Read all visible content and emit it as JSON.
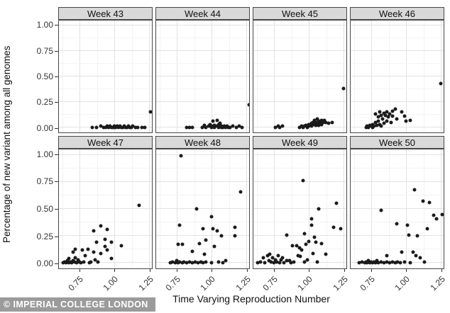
{
  "figure": {
    "watermark": "© IMPERIAL COLLEGE LONDON"
  },
  "chart_data": {
    "type": "scatter",
    "title": "",
    "xlabel": "Time Varying Reproduction Number",
    "ylabel": "Percentage of new variant among all genomes",
    "facet_by": "week",
    "legend": "none",
    "grid": "major+minor",
    "point_color": "#1b1b1b",
    "xlim": [
      0.6,
      1.27
    ],
    "ylim": [
      0.0,
      1.0
    ],
    "x_tick_values": [
      0.75,
      1.0,
      1.25
    ],
    "x_tick_labels": [
      "0.75",
      "1.00",
      "1.25"
    ],
    "y_tick_values": [
      0.0,
      0.25,
      0.5,
      0.75,
      1.0
    ],
    "y_tick_labels": [
      "0.00",
      "0.25",
      "0.50",
      "0.75",
      "1.00"
    ],
    "x_minor_ticks": [
      0.625,
      0.875,
      1.125
    ],
    "y_minor_ticks": [
      0.125,
      0.375,
      0.625,
      0.875
    ],
    "panels": [
      {
        "title": "Week 43",
        "points": [
          [
            0.84,
            0.0
          ],
          [
            0.87,
            0.0
          ],
          [
            0.9,
            0.01
          ],
          [
            0.92,
            0.0
          ],
          [
            0.94,
            0.0
          ],
          [
            0.95,
            0.01
          ],
          [
            0.96,
            0.0
          ],
          [
            0.97,
            0.01
          ],
          [
            0.98,
            0.0
          ],
          [
            0.99,
            0.0
          ],
          [
            1.0,
            0.01
          ],
          [
            1.0,
            0.0
          ],
          [
            1.01,
            0.0
          ],
          [
            1.02,
            0.01
          ],
          [
            1.03,
            0.0
          ],
          [
            1.04,
            0.01
          ],
          [
            1.05,
            0.0
          ],
          [
            1.06,
            0.0
          ],
          [
            1.07,
            0.01
          ],
          [
            1.08,
            0.0
          ],
          [
            1.09,
            0.0
          ],
          [
            1.1,
            0.01
          ],
          [
            1.11,
            0.0
          ],
          [
            1.12,
            0.0
          ],
          [
            1.13,
            0.01
          ],
          [
            1.15,
            0.0
          ],
          [
            1.17,
            0.0
          ],
          [
            1.2,
            0.0
          ],
          [
            1.22,
            0.0
          ],
          [
            1.26,
            0.15
          ]
        ]
      },
      {
        "title": "Week 44",
        "points": [
          [
            0.82,
            0.0
          ],
          [
            0.84,
            0.0
          ],
          [
            0.86,
            0.0
          ],
          [
            0.93,
            0.0
          ],
          [
            0.95,
            0.02
          ],
          [
            0.96,
            0.0
          ],
          [
            0.98,
            0.01
          ],
          [
            0.99,
            0.03
          ],
          [
            1.0,
            0.0
          ],
          [
            1.0,
            0.01
          ],
          [
            1.01,
            0.06
          ],
          [
            1.02,
            0.0
          ],
          [
            1.02,
            0.02
          ],
          [
            1.03,
            0.01
          ],
          [
            1.04,
            0.07
          ],
          [
            1.05,
            0.0
          ],
          [
            1.05,
            0.03
          ],
          [
            1.06,
            0.04
          ],
          [
            1.07,
            0.0
          ],
          [
            1.07,
            0.01
          ],
          [
            1.08,
            0.0
          ],
          [
            1.09,
            0.01
          ],
          [
            1.1,
            0.0
          ],
          [
            1.11,
            0.01
          ],
          [
            1.12,
            0.0
          ],
          [
            1.13,
            0.0
          ],
          [
            1.15,
            0.01
          ],
          [
            1.18,
            0.0
          ],
          [
            1.2,
            0.01
          ],
          [
            1.22,
            0.0
          ],
          [
            1.27,
            0.22
          ]
        ]
      },
      {
        "title": "Week 45",
        "points": [
          [
            0.76,
            0.0
          ],
          [
            0.78,
            0.01
          ],
          [
            0.79,
            0.0
          ],
          [
            0.81,
            0.01
          ],
          [
            0.93,
            0.0
          ],
          [
            0.95,
            0.01
          ],
          [
            0.96,
            0.0
          ],
          [
            0.97,
            0.01
          ],
          [
            0.98,
            0.02
          ],
          [
            0.99,
            0.0
          ],
          [
            1.0,
            0.01
          ],
          [
            1.0,
            0.03
          ],
          [
            1.01,
            0.02
          ],
          [
            1.02,
            0.04
          ],
          [
            1.02,
            0.01
          ],
          [
            1.03,
            0.05
          ],
          [
            1.04,
            0.03
          ],
          [
            1.04,
            0.07
          ],
          [
            1.05,
            0.02
          ],
          [
            1.05,
            0.05
          ],
          [
            1.06,
            0.08
          ],
          [
            1.06,
            0.04
          ],
          [
            1.07,
            0.06
          ],
          [
            1.07,
            0.02
          ],
          [
            1.08,
            0.05
          ],
          [
            1.09,
            0.03
          ],
          [
            1.09,
            0.07
          ],
          [
            1.1,
            0.05
          ],
          [
            1.11,
            0.07
          ],
          [
            1.12,
            0.05
          ],
          [
            1.14,
            0.04
          ],
          [
            1.17,
            0.05
          ],
          [
            1.25,
            0.38
          ]
        ]
      },
      {
        "title": "Week 46",
        "points": [
          [
            0.71,
            0.0
          ],
          [
            0.72,
            0.01
          ],
          [
            0.73,
            0.0
          ],
          [
            0.74,
            0.02
          ],
          [
            0.75,
            0.01
          ],
          [
            0.76,
            0.0
          ],
          [
            0.76,
            0.03
          ],
          [
            0.77,
            0.01
          ],
          [
            0.78,
            0.13
          ],
          [
            0.78,
            0.05
          ],
          [
            0.79,
            0.02
          ],
          [
            0.8,
            0.1
          ],
          [
            0.8,
            0.06
          ],
          [
            0.81,
            0.15
          ],
          [
            0.81,
            0.03
          ],
          [
            0.82,
            0.12
          ],
          [
            0.82,
            0.01
          ],
          [
            0.83,
            0.08
          ],
          [
            0.84,
            0.14
          ],
          [
            0.84,
            0.04
          ],
          [
            0.85,
            0.12
          ],
          [
            0.86,
            0.15
          ],
          [
            0.86,
            0.06
          ],
          [
            0.87,
            0.1
          ],
          [
            0.88,
            0.13
          ],
          [
            0.89,
            0.05
          ],
          [
            0.9,
            0.16
          ],
          [
            0.9,
            0.11
          ],
          [
            0.92,
            0.18
          ],
          [
            0.93,
            0.08
          ],
          [
            0.97,
            0.15
          ],
          [
            0.99,
            0.11
          ],
          [
            1.0,
            0.06
          ],
          [
            1.03,
            0.07
          ],
          [
            1.25,
            0.43
          ]
        ]
      },
      {
        "title": "Week 47",
        "points": [
          [
            0.63,
            0.0
          ],
          [
            0.64,
            0.01
          ],
          [
            0.65,
            0.0
          ],
          [
            0.66,
            0.02
          ],
          [
            0.67,
            0.0
          ],
          [
            0.67,
            0.04
          ],
          [
            0.68,
            0.01
          ],
          [
            0.69,
            0.0
          ],
          [
            0.7,
            0.1
          ],
          [
            0.7,
            0.02
          ],
          [
            0.71,
            0.01
          ],
          [
            0.72,
            0.13
          ],
          [
            0.72,
            0.05
          ],
          [
            0.73,
            0.0
          ],
          [
            0.74,
            0.03
          ],
          [
            0.75,
            0.01
          ],
          [
            0.76,
            0.0
          ],
          [
            0.77,
            0.12
          ],
          [
            0.78,
            0.01
          ],
          [
            0.79,
            0.07
          ],
          [
            0.81,
            0.13
          ],
          [
            0.82,
            0.0
          ],
          [
            0.83,
            0.01
          ],
          [
            0.85,
            0.3
          ],
          [
            0.85,
            0.1
          ],
          [
            0.86,
            0.03
          ],
          [
            0.87,
            0.19
          ],
          [
            0.88,
            0.01
          ],
          [
            0.9,
            0.34
          ],
          [
            0.9,
            0.09
          ],
          [
            0.93,
            0.22
          ],
          [
            0.93,
            0.15
          ],
          [
            0.95,
            0.31
          ],
          [
            0.95,
            0.12
          ],
          [
            0.98,
            0.19
          ],
          [
            0.98,
            0.04
          ],
          [
            1.05,
            0.16
          ],
          [
            1.18,
            0.53
          ]
        ]
      },
      {
        "title": "Week 48",
        "points": [
          [
            0.7,
            0.0
          ],
          [
            0.72,
            0.01
          ],
          [
            0.74,
            0.0
          ],
          [
            0.75,
            0.02
          ],
          [
            0.76,
            0.17
          ],
          [
            0.76,
            0.0
          ],
          [
            0.77,
            0.35
          ],
          [
            0.77,
            0.01
          ],
          [
            0.78,
            0.99
          ],
          [
            0.79,
            0.17
          ],
          [
            0.79,
            0.0
          ],
          [
            0.8,
            0.01
          ],
          [
            0.82,
            0.0
          ],
          [
            0.84,
            0.01
          ],
          [
            0.86,
            0.11
          ],
          [
            0.86,
            0.0
          ],
          [
            0.88,
            0.01
          ],
          [
            0.89,
            0.5
          ],
          [
            0.9,
            0.0
          ],
          [
            0.91,
            0.18
          ],
          [
            0.92,
            0.01
          ],
          [
            0.94,
            0.32
          ],
          [
            0.94,
            0.0
          ],
          [
            0.95,
            0.08
          ],
          [
            0.96,
            0.21
          ],
          [
            0.96,
            0.01
          ],
          [
            1.0,
            0.43
          ],
          [
            1.0,
            0.0
          ],
          [
            1.01,
            0.32
          ],
          [
            1.02,
            0.15
          ],
          [
            1.04,
            0.3
          ],
          [
            1.05,
            0.01
          ],
          [
            1.07,
            0.25
          ],
          [
            1.08,
            0.0
          ],
          [
            1.1,
            0.02
          ],
          [
            1.17,
            0.33
          ],
          [
            1.17,
            0.25
          ],
          [
            1.21,
            0.66
          ]
        ]
      },
      {
        "title": "Week 49",
        "points": [
          [
            0.63,
            0.0
          ],
          [
            0.65,
            0.01
          ],
          [
            0.67,
            0.05
          ],
          [
            0.68,
            0.0
          ],
          [
            0.7,
            0.07
          ],
          [
            0.71,
            0.02
          ],
          [
            0.72,
            0.08
          ],
          [
            0.73,
            0.01
          ],
          [
            0.74,
            0.05
          ],
          [
            0.75,
            0.0
          ],
          [
            0.76,
            0.03
          ],
          [
            0.77,
            0.01
          ],
          [
            0.78,
            0.07
          ],
          [
            0.79,
            0.0
          ],
          [
            0.8,
            0.03
          ],
          [
            0.81,
            0.05
          ],
          [
            0.82,
            0.0
          ],
          [
            0.84,
            0.26
          ],
          [
            0.84,
            0.02
          ],
          [
            0.86,
            0.02
          ],
          [
            0.87,
            0.0
          ],
          [
            0.88,
            0.16
          ],
          [
            0.89,
            0.01
          ],
          [
            0.91,
            0.16
          ],
          [
            0.92,
            0.07
          ],
          [
            0.93,
            0.14
          ],
          [
            0.94,
            0.06
          ],
          [
            0.95,
            0.12
          ],
          [
            0.96,
            0.76
          ],
          [
            0.97,
            0.27
          ],
          [
            0.97,
            0.01
          ],
          [
            0.98,
            0.17
          ],
          [
            0.99,
            0.03
          ],
          [
            1.0,
            0.2
          ],
          [
            1.02,
            0.41
          ],
          [
            1.02,
            0.35
          ],
          [
            1.03,
            0.09
          ],
          [
            1.04,
            0.24
          ],
          [
            1.05,
            0.19
          ],
          [
            1.06,
            0.01
          ],
          [
            1.07,
            0.5
          ],
          [
            1.09,
            0.18
          ],
          [
            1.12,
            0.08
          ],
          [
            1.18,
            0.33
          ],
          [
            1.2,
            0.55
          ],
          [
            1.23,
            0.32
          ]
        ]
      },
      {
        "title": "Week 50",
        "points": [
          [
            0.66,
            0.0
          ],
          [
            0.68,
            0.01
          ],
          [
            0.7,
            0.0
          ],
          [
            0.71,
            0.01
          ],
          [
            0.72,
            0.0
          ],
          [
            0.73,
            0.02
          ],
          [
            0.74,
            0.0
          ],
          [
            0.75,
            0.01
          ],
          [
            0.76,
            0.0
          ],
          [
            0.77,
            0.01
          ],
          [
            0.78,
            0.0
          ],
          [
            0.79,
            0.02
          ],
          [
            0.8,
            0.0
          ],
          [
            0.82,
            0.49
          ],
          [
            0.82,
            0.01
          ],
          [
            0.84,
            0.0
          ],
          [
            0.86,
            0.07
          ],
          [
            0.86,
            0.01
          ],
          [
            0.88,
            0.0
          ],
          [
            0.9,
            0.01
          ],
          [
            0.92,
            0.0
          ],
          [
            0.93,
            0.36
          ],
          [
            0.94,
            0.01
          ],
          [
            0.96,
            0.0
          ],
          [
            0.97,
            0.1
          ],
          [
            0.99,
            0.01
          ],
          [
            1.01,
            0.35
          ],
          [
            1.02,
            0.26
          ],
          [
            1.03,
            0.0
          ],
          [
            1.05,
            0.1
          ],
          [
            1.06,
            0.68
          ],
          [
            1.07,
            0.07
          ],
          [
            1.08,
            0.25
          ],
          [
            1.1,
            0.05
          ],
          [
            1.12,
            0.57
          ],
          [
            1.13,
            0.01
          ],
          [
            1.15,
            0.32
          ],
          [
            1.17,
            0.56
          ],
          [
            1.2,
            0.44
          ],
          [
            1.22,
            0.41
          ],
          [
            1.26,
            0.45
          ]
        ]
      }
    ]
  },
  "colors": {
    "point": "#1b1b1b",
    "strip_background": "#d9d9d9",
    "panel_border": "#474747",
    "grid_major": "#e2e2e2",
    "grid_minor": "#f3f3f3",
    "watermark_background": "#9b9b9b",
    "watermark_text": "#ffffff"
  }
}
